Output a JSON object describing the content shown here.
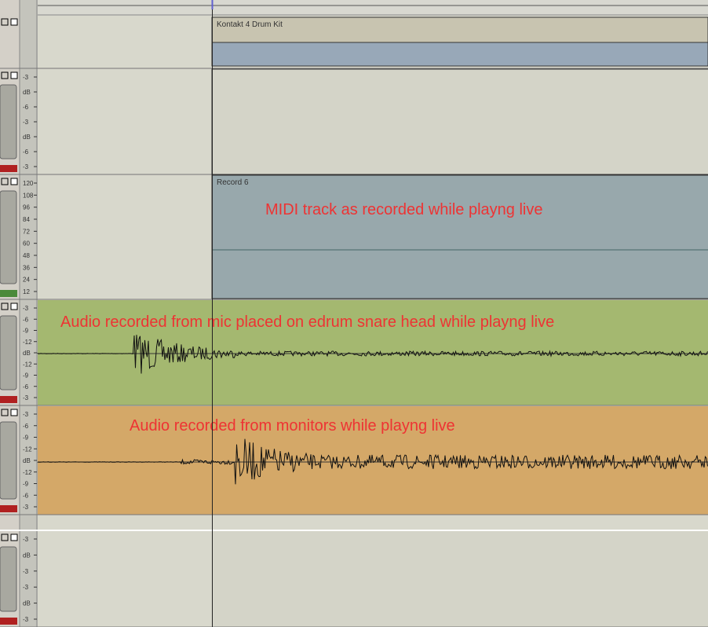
{
  "tracks": [
    {
      "clip_name": "Kontakt 4 Drum Kit",
      "scale": []
    },
    {
      "scale": [
        "-3",
        "dB",
        "-6",
        "-3",
        "dB",
        "-6",
        "-3"
      ]
    },
    {
      "clip_name": "Record 6",
      "annotation": "MIDI track as recorded while playng live",
      "scale": [
        "120",
        "108",
        "96",
        "84",
        "72",
        "60",
        "48",
        "36",
        "24",
        "12"
      ]
    },
    {
      "annotation": "Audio recorded from mic placed on edrum snare head while playng live",
      "scale": [
        "-3",
        "-6",
        "-9",
        "-12",
        "dB",
        "-12",
        "-9",
        "-6",
        "-3"
      ]
    },
    {
      "annotation": "Audio recorded from monitors while playng live",
      "scale": [
        "-3",
        "-6",
        "-9",
        "-12",
        "dB",
        "-12",
        "-9",
        "-6",
        "-3"
      ]
    },
    {
      "scale": [
        "-3",
        "dB",
        "-3",
        "-3",
        "dB",
        "-3"
      ]
    }
  ]
}
